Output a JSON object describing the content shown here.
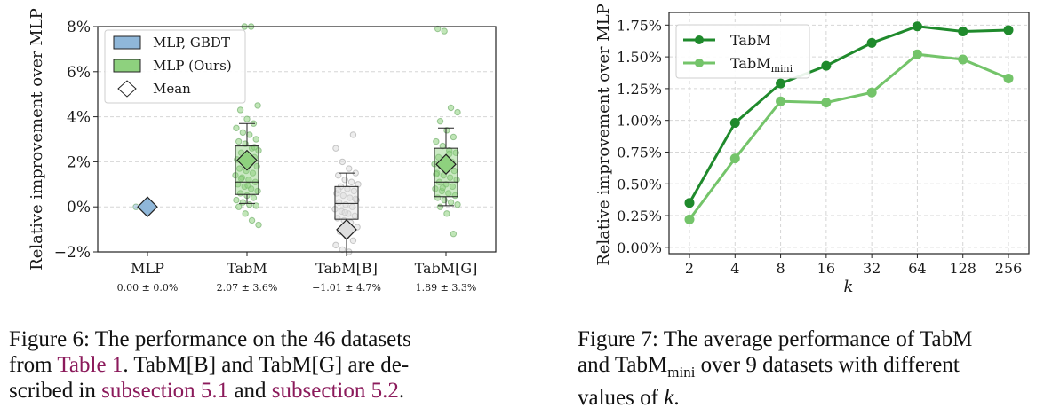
{
  "colors": {
    "box_baseline": "#8fb7d9",
    "box_ours": "#8ed17e",
    "tabm_line": "#1f8a2c",
    "tabm_mini_line": "#74c46a",
    "link": "#8b1a5b"
  },
  "chart_data": [
    {
      "type": "box",
      "title": "",
      "xlabel": "",
      "ylabel": "Relative improvement over MLP",
      "ylim": [
        -2,
        8
      ],
      "yticks": [
        "−2%",
        "0%",
        "2%",
        "4%",
        "6%",
        "8%"
      ],
      "yticks_values": [
        -2,
        0,
        2,
        4,
        6,
        8
      ],
      "grid": true,
      "legend": {
        "placement": "top-left",
        "entries": [
          {
            "label": "MLP, GBDT",
            "marker": "box",
            "color": "#8fb7d9"
          },
          {
            "label": "MLP (Ours)",
            "marker": "box",
            "color": "#8ed17e"
          },
          {
            "label": "Mean",
            "marker": "diamond",
            "color": "#ffffff"
          }
        ]
      },
      "groups": [
        {
          "name": "MLP",
          "stat": "0.00 ± 0.0%",
          "mean": 0.0,
          "color": "#8fb7d9",
          "q1": 0.0,
          "median": 0.0,
          "q3": 0.0,
          "whisker_low": 0.0,
          "whisker_high": 0.0,
          "points": [
            0.0
          ]
        },
        {
          "name": "TabM",
          "stat": "2.07 ± 3.6%",
          "mean": 2.07,
          "color": "#8ed17e",
          "q1": 0.55,
          "median": 1.1,
          "q3": 2.7,
          "whisker_low": 0.15,
          "whisker_high": 3.7,
          "points": [
            8.0,
            8.0,
            4.5,
            4.3,
            3.9,
            3.7,
            3.5,
            3.3,
            3.2,
            3.0,
            2.9,
            2.8,
            2.6,
            2.5,
            2.4,
            2.3,
            2.2,
            2.1,
            2.0,
            1.9,
            1.8,
            1.7,
            1.6,
            1.5,
            1.4,
            1.3,
            1.2,
            1.1,
            1.0,
            0.9,
            0.8,
            0.7,
            0.6,
            0.5,
            0.4,
            0.3,
            0.2,
            0.1,
            0.05,
            0.0,
            -0.3,
            -0.6,
            -0.8,
            1.25,
            0.95,
            2.65
          ]
        },
        {
          "name": "TabM[B]",
          "stat": "−1.01 ± 4.7%",
          "mean": -1.01,
          "color": "#dedede",
          "q1": -0.55,
          "median": 0.15,
          "q3": 0.9,
          "whisker_low": -2.0,
          "whisker_high": 1.5,
          "points": [
            3.2,
            2.6,
            2.0,
            1.7,
            1.5,
            1.4,
            1.2,
            1.1,
            1.0,
            0.9,
            0.8,
            0.7,
            0.6,
            0.5,
            0.4,
            0.3,
            0.2,
            0.1,
            0.0,
            -0.1,
            -0.2,
            -0.3,
            -0.4,
            -0.5,
            -0.6,
            -0.7,
            -0.9,
            -1.1,
            -1.3,
            -1.5,
            -1.7,
            -1.9,
            -2.0,
            0.35,
            0.75,
            -0.25
          ]
        },
        {
          "name": "TabM[G]",
          "stat": "1.89 ± 3.3%",
          "mean": 1.89,
          "color": "#8ed17e",
          "q1": 0.45,
          "median": 1.1,
          "q3": 2.6,
          "whisker_low": 0.05,
          "whisker_high": 3.5,
          "points": [
            7.9,
            7.8,
            4.4,
            4.2,
            3.8,
            3.4,
            3.1,
            2.9,
            2.7,
            2.5,
            2.4,
            2.2,
            2.1,
            2.0,
            1.9,
            1.8,
            1.7,
            1.6,
            1.5,
            1.4,
            1.3,
            1.2,
            1.1,
            1.0,
            0.9,
            0.8,
            0.7,
            0.6,
            0.5,
            0.4,
            0.3,
            0.2,
            0.1,
            0.0,
            -0.3,
            -1.2,
            1.45,
            0.85,
            2.35
          ]
        }
      ]
    },
    {
      "type": "line",
      "title": "",
      "xlabel": "k",
      "ylabel": "Relative improvement over MLP",
      "categories": [
        "2",
        "4",
        "8",
        "16",
        "32",
        "64",
        "128",
        "256"
      ],
      "ylim": [
        -0.05,
        1.85
      ],
      "yticks": [
        "0.00%",
        "0.25%",
        "0.50%",
        "0.75%",
        "1.00%",
        "1.25%",
        "1.50%",
        "1.75%"
      ],
      "yticks_values": [
        0.0,
        0.25,
        0.5,
        0.75,
        1.0,
        1.25,
        1.5,
        1.75
      ],
      "grid": true,
      "legend": {
        "placement": "top-left"
      },
      "series": [
        {
          "name": "TabM",
          "name_base": "TabM",
          "name_sub": "",
          "color": "#1f8a2c",
          "values": [
            0.35,
            0.98,
            1.29,
            1.43,
            1.61,
            1.74,
            1.7,
            1.71
          ]
        },
        {
          "name": "TabMmini",
          "name_base": "TabM",
          "name_sub": "mini",
          "color": "#74c46a",
          "values": [
            0.22,
            0.7,
            1.15,
            1.14,
            1.22,
            1.52,
            1.48,
            1.33
          ]
        }
      ]
    }
  ],
  "captions": {
    "fig6": {
      "l1": "Figure 6:  The performance on the 46 datasets",
      "l2_a": "from ",
      "l2_link": "Table 1",
      "l2_b": ".  TabM[B] and TabM[G] are de-",
      "l3_a": "scribed in ",
      "l3_link1": "subsection 5.1",
      "l3_b": " and ",
      "l3_link2": "subsection 5.2",
      "l3_c": "."
    },
    "fig7": {
      "l1": "Figure 7:  The average performance of TabM",
      "l2_a": "and TabM",
      "l2_sub": "mini",
      "l2_b": " over 9 datasets with different",
      "l3_a": "values of ",
      "l3_k": "k",
      "l3_b": "."
    }
  }
}
